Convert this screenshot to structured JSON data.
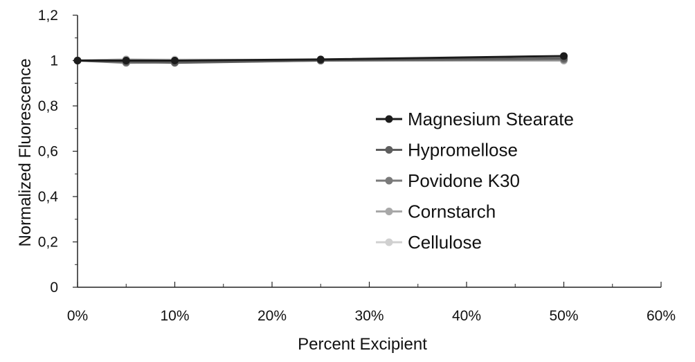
{
  "chart_data": {
    "type": "line",
    "title": "",
    "xlabel": "Percent Excipient",
    "ylabel": "Normalized Fluorescence",
    "x": [
      0,
      5,
      10,
      25,
      50
    ],
    "xlim": [
      0,
      60
    ],
    "ylim": [
      0,
      1.2
    ],
    "x_ticks": [
      0,
      10,
      20,
      30,
      40,
      50,
      60
    ],
    "x_tick_labels": [
      "0%",
      "10%",
      "20%",
      "30%",
      "40%",
      "50%",
      "60%"
    ],
    "y_ticks": [
      0,
      0.2,
      0.4,
      0.6,
      0.8,
      1,
      1.2
    ],
    "y_tick_labels": [
      "0",
      "0,2",
      "0,4",
      "0,6",
      "0,8",
      "1",
      "1,2"
    ],
    "grid": false,
    "legend_position": "right-middle",
    "series": [
      {
        "name": "Magnesium Stearate",
        "values": [
          1.0,
          1.0,
          1.0,
          1.005,
          1.02
        ],
        "color": "#1c1c1c"
      },
      {
        "name": "Hypromellose",
        "values": [
          1.0,
          0.995,
          0.99,
          1.0,
          1.01
        ],
        "color": "#5e5e5e"
      },
      {
        "name": "Povidone K30",
        "values": [
          1.0,
          0.99,
          0.992,
          1.0,
          1.005
        ],
        "color": "#7a7a7a"
      },
      {
        "name": "Cornstarch",
        "values": [
          1.0,
          1.005,
          1.0,
          1.0,
          1.0
        ],
        "color": "#a8a8a8"
      },
      {
        "name": "Cellulose",
        "values": [
          1.0,
          1.005,
          1.005,
          1.0,
          1.0
        ],
        "color": "#d0d0d0"
      }
    ]
  }
}
